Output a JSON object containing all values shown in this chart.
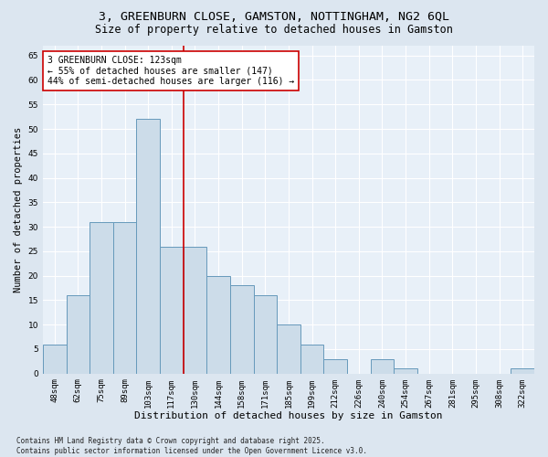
{
  "title": "3, GREENBURN CLOSE, GAMSTON, NOTTINGHAM, NG2 6QL",
  "subtitle": "Size of property relative to detached houses in Gamston",
  "xlabel": "Distribution of detached houses by size in Gamston",
  "ylabel": "Number of detached properties",
  "categories": [
    "48sqm",
    "62sqm",
    "75sqm",
    "89sqm",
    "103sqm",
    "117sqm",
    "130sqm",
    "144sqm",
    "158sqm",
    "171sqm",
    "185sqm",
    "199sqm",
    "212sqm",
    "226sqm",
    "240sqm",
    "254sqm",
    "267sqm",
    "281sqm",
    "295sqm",
    "308sqm",
    "322sqm"
  ],
  "values": [
    6,
    16,
    31,
    31,
    52,
    26,
    26,
    20,
    18,
    16,
    10,
    6,
    3,
    0,
    3,
    1,
    0,
    0,
    0,
    0,
    1
  ],
  "bar_color": "#ccdce9",
  "bar_edge_color": "#6699bb",
  "vline_x": 5.5,
  "vline_color": "#cc0000",
  "annotation_text": "3 GREENBURN CLOSE: 123sqm\n← 55% of detached houses are smaller (147)\n44% of semi-detached houses are larger (116) →",
  "annotation_box_color": "#ffffff",
  "annotation_box_edge": "#cc0000",
  "ylim": [
    0,
    67
  ],
  "yticks": [
    0,
    5,
    10,
    15,
    20,
    25,
    30,
    35,
    40,
    45,
    50,
    55,
    60,
    65
  ],
  "background_color": "#dce6f0",
  "plot_bg_color": "#e8f0f8",
  "grid_color": "#ffffff",
  "footer": "Contains HM Land Registry data © Crown copyright and database right 2025.\nContains public sector information licensed under the Open Government Licence v3.0.",
  "title_fontsize": 9.5,
  "subtitle_fontsize": 8.5,
  "ylabel_fontsize": 7.5,
  "xlabel_fontsize": 8,
  "tick_fontsize": 6.5,
  "annotation_fontsize": 7,
  "footer_fontsize": 5.5
}
